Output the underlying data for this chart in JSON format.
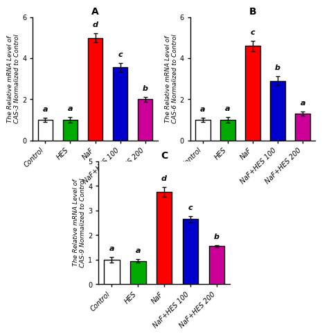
{
  "panels": [
    {
      "label": "A",
      "ylabel": "The Relative mRNA Level of\nCAS-3 Normalized to Control",
      "ylim": [
        0,
        6
      ],
      "yticks": [
        0,
        2,
        4,
        6
      ],
      "values": [
        1.0,
        1.0,
        5.0,
        3.55,
        2.0
      ],
      "errors": [
        0.1,
        0.15,
        0.22,
        0.22,
        0.12
      ],
      "sig_labels": [
        "a",
        "a",
        "d",
        "c",
        "b"
      ],
      "colors": [
        "#ffffff",
        "#00aa00",
        "#ff0000",
        "#0000cc",
        "#cc0099"
      ],
      "categories": [
        "Control",
        "HES",
        "NaF",
        "NaF+HES 100",
        "NaF+HES 200"
      ]
    },
    {
      "label": "B",
      "ylabel": "The Relative mRNA Level of\nCAS-6 Normalized to Control",
      "ylim": [
        0,
        6
      ],
      "yticks": [
        0,
        2,
        4,
        6
      ],
      "values": [
        1.0,
        1.0,
        4.6,
        2.9,
        1.3
      ],
      "errors": [
        0.1,
        0.15,
        0.25,
        0.22,
        0.1
      ],
      "sig_labels": [
        "a",
        "a",
        "c",
        "b",
        "a"
      ],
      "colors": [
        "#ffffff",
        "#00aa00",
        "#ff0000",
        "#0000cc",
        "#cc0099"
      ],
      "categories": [
        "Control",
        "HES",
        "NaF",
        "NaF+HES 100",
        "NaF+HES 200"
      ]
    },
    {
      "label": "C",
      "ylabel": "The Relative mRNA Level of\nCAS-9 Normalized to Control",
      "ylim": [
        0,
        5
      ],
      "yticks": [
        0,
        1,
        2,
        3,
        4,
        5
      ],
      "values": [
        1.0,
        0.95,
        3.75,
        2.65,
        1.55
      ],
      "errors": [
        0.12,
        0.08,
        0.2,
        0.12,
        0.05
      ],
      "sig_labels": [
        "a",
        "a",
        "d",
        "c",
        "b"
      ],
      "colors": [
        "#ffffff",
        "#00aa00",
        "#ff0000",
        "#0000cc",
        "#cc0099"
      ],
      "categories": [
        "Control",
        "HES",
        "NaF",
        "NaF+HES 100",
        "NaF+HES 200"
      ]
    }
  ],
  "bar_width": 0.6,
  "edgecolor": "#000000",
  "bar_edgewidth": 1.0,
  "fontsize_ylabel": 6.5,
  "fontsize_ticks": 7,
  "fontsize_xticklabels": 7,
  "fontsize_panel_label": 10,
  "fontsize_sig": 8,
  "background_color": "#ffffff"
}
